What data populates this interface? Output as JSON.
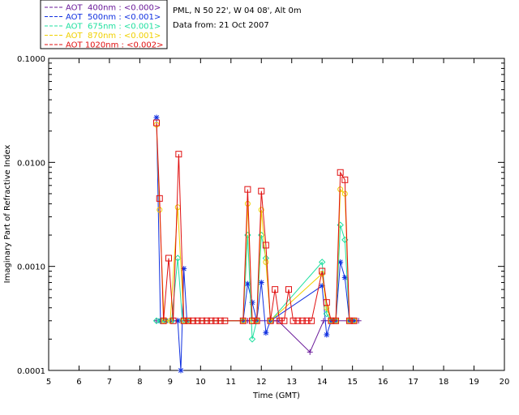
{
  "header": {
    "location": "PML, N 50 22', W 04 08', Alt 0m",
    "date_line": "Data from: 21 Oct 2007"
  },
  "chart_data": {
    "type": "line",
    "title": "",
    "xlabel": "Time (GMT)",
    "ylabel": "Imaginary Part of Refractive Index",
    "xlim": [
      5,
      20
    ],
    "ylim": [
      0.0001,
      0.1
    ],
    "yscale": "log",
    "grid": false,
    "legend_position": "top-left, outside plot",
    "x_ticks": [
      "5",
      "6",
      "7",
      "8",
      "9",
      "10",
      "11",
      "12",
      "13",
      "14",
      "15",
      "16",
      "17",
      "18",
      "19",
      "20"
    ],
    "y_ticks": [
      "0.0001",
      "0.0010",
      "0.0100",
      "0.1000"
    ],
    "series": [
      {
        "name": "AOT  400nm : <0.000>",
        "color": "#6a1a9a",
        "marker": "plus",
        "x": [
          8.55,
          8.68,
          9.25,
          9.5,
          11.4,
          11.55,
          12.4,
          12.55,
          13.6,
          14.05,
          15.2
        ],
        "y": [
          0.0003,
          0.0003,
          0.0003,
          0.0003,
          0.0003,
          0.0003,
          0.0003,
          0.0003,
          0.00015,
          0.0003,
          0.0003
        ]
      },
      {
        "name": "AOT  500nm : <0.001>",
        "color": "#1030e0",
        "marker": "star",
        "x": [
          8.55,
          8.68,
          8.85,
          9.05,
          9.25,
          9.35,
          9.45,
          9.55,
          11.4,
          11.55,
          11.7,
          11.85,
          12.0,
          12.15,
          12.3,
          14.0,
          14.15,
          14.3,
          14.45,
          14.6,
          14.75,
          14.9,
          15.05
        ],
        "y": [
          0.027,
          0.0003,
          0.0003,
          0.0003,
          0.0003,
          0.0001,
          0.00095,
          0.0003,
          0.0003,
          0.00068,
          0.00045,
          0.0003,
          0.0007,
          0.00023,
          0.0003,
          0.00065,
          0.00022,
          0.0003,
          0.0003,
          0.0011,
          0.00078,
          0.0003,
          0.0003
        ]
      },
      {
        "name": "AOT  675nm : <0.001>",
        "color": "#20e0a0",
        "marker": "diamond",
        "x": [
          8.55,
          8.68,
          8.85,
          9.05,
          9.25,
          9.4,
          9.55,
          11.4,
          11.55,
          11.7,
          11.85,
          12.0,
          12.15,
          12.3,
          14.0,
          14.15,
          14.3,
          14.45,
          14.6,
          14.75,
          14.9,
          15.05
        ],
        "y": [
          0.0003,
          0.0003,
          0.0003,
          0.0003,
          0.0012,
          0.0003,
          0.0003,
          0.0003,
          0.002,
          0.0002,
          0.0003,
          0.002,
          0.0012,
          0.0003,
          0.0011,
          0.00035,
          0.0003,
          0.0003,
          0.0025,
          0.0018,
          0.0003,
          0.0003
        ]
      },
      {
        "name": "AOT  870nm : <0.001>",
        "color": "#f0d000",
        "marker": "circle",
        "x": [
          8.55,
          8.65,
          8.8,
          9.0,
          9.25,
          9.45,
          9.6,
          11.4,
          11.55,
          11.7,
          11.85,
          12.0,
          12.15,
          12.3,
          14.0,
          14.15,
          14.3,
          14.45,
          14.6,
          14.75,
          14.9,
          15.05
        ],
        "y": [
          0.023,
          0.0035,
          0.0003,
          0.0003,
          0.0037,
          0.0003,
          0.0003,
          0.0003,
          0.004,
          0.0003,
          0.0003,
          0.0035,
          0.0011,
          0.0003,
          0.00085,
          0.0004,
          0.0003,
          0.0003,
          0.0055,
          0.005,
          0.0003,
          0.0003
        ]
      },
      {
        "name": "AOT 1020nm : <0.002>",
        "color": "#e01010",
        "marker": "square",
        "x": [
          8.55,
          8.65,
          8.78,
          8.95,
          9.1,
          9.28,
          9.45,
          9.6,
          9.75,
          9.9,
          10.05,
          10.2,
          10.35,
          10.5,
          10.65,
          10.8,
          11.4,
          11.55,
          11.7,
          11.85,
          12.0,
          12.15,
          12.3,
          12.45,
          12.6,
          12.75,
          12.9,
          13.05,
          13.2,
          13.35,
          13.5,
          13.65,
          14.0,
          14.15,
          14.3,
          14.45,
          14.6,
          14.75,
          14.9,
          15.05
        ],
        "y": [
          0.024,
          0.0045,
          0.0003,
          0.0012,
          0.0003,
          0.012,
          0.0003,
          0.0003,
          0.0003,
          0.0003,
          0.0003,
          0.0003,
          0.0003,
          0.0003,
          0.0003,
          0.0003,
          0.0003,
          0.0055,
          0.0003,
          0.0003,
          0.0053,
          0.0016,
          0.0003,
          0.0006,
          0.0003,
          0.0003,
          0.0006,
          0.0003,
          0.0003,
          0.0003,
          0.0003,
          0.0003,
          0.0009,
          0.00045,
          0.0003,
          0.0003,
          0.008,
          0.0068,
          0.0003,
          0.0003
        ]
      }
    ]
  }
}
